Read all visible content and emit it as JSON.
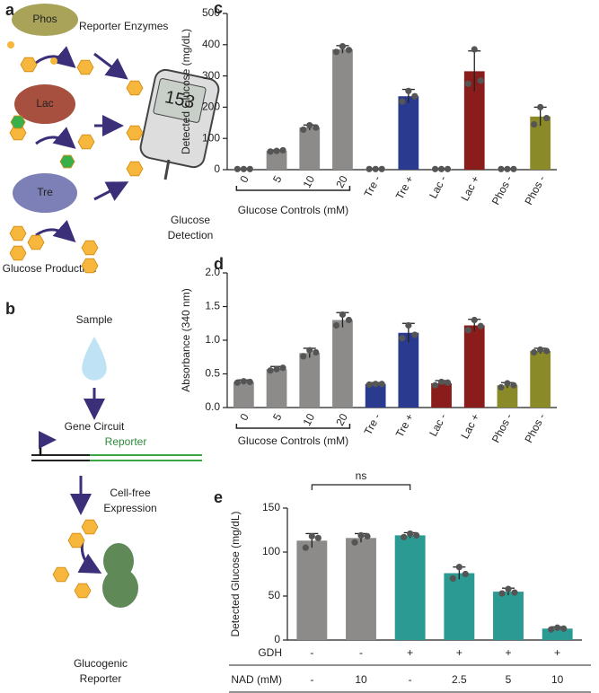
{
  "diagram": {
    "a": {
      "panel": "a",
      "phos": "Phos",
      "title": "Reporter Enzymes",
      "lac": "Lac",
      "tre": "Tre",
      "meter": "153",
      "detection": [
        "Glucose",
        "Detection"
      ],
      "production": "Glucose Production"
    },
    "b": {
      "panel": "b",
      "sample": "Sample",
      "circuit": "Gene Circuit",
      "reporter": "Reporter",
      "expression": [
        "Cell-free",
        "Expression"
      ],
      "product": [
        "Glucogenic",
        "Reporter"
      ]
    }
  },
  "chart_data": [
    {
      "type": "bar",
      "panel": "c",
      "y_label": "Detected Glucose (mg/dL)",
      "group_label": "Glucose Controls (mM)",
      "categories": [
        "0",
        "5",
        "10",
        "20",
        "Tre -",
        "Tre +",
        "Lac -",
        "Lac +",
        "Phos -",
        "Phos -"
      ],
      "values": [
        2,
        60,
        135,
        385,
        2,
        235,
        2,
        315,
        2,
        170
      ],
      "errors": [
        1,
        3,
        8,
        12,
        1,
        22,
        1,
        65,
        1,
        30
      ],
      "points": [
        [
          2,
          2,
          2
        ],
        [
          58,
          60,
          62
        ],
        [
          128,
          142,
          135
        ],
        [
          377,
          395,
          383
        ],
        [
          2,
          2,
          2
        ],
        [
          218,
          252,
          235
        ],
        [
          2,
          2,
          2
        ],
        [
          275,
          385,
          285
        ],
        [
          2,
          2,
          2
        ],
        [
          145,
          200,
          165
        ]
      ],
      "colors": [
        "#8d8b89",
        "#8d8b89",
        "#8d8b89",
        "#8d8b89",
        "#8d8b89",
        "#2a3a8f",
        "#8d8b89",
        "#8a1d1b",
        "#8d8b89",
        "#8a8a28"
      ],
      "ylim": [
        0,
        500
      ],
      "yticks": [
        0,
        100,
        200,
        300,
        400,
        500
      ]
    },
    {
      "type": "bar",
      "panel": "d",
      "y_label": "Absorbance (340 nm)",
      "group_label": "Glucose Controls (mM)",
      "categories": [
        "0",
        "5",
        "10",
        "20",
        "Tre -",
        "Tre +",
        "Lac -",
        "Lac +",
        "Phos -",
        "Phos -"
      ],
      "values": [
        0.38,
        0.57,
        0.81,
        1.3,
        0.35,
        1.11,
        0.36,
        1.22,
        0.33,
        0.84
      ],
      "errors": [
        0.03,
        0.04,
        0.07,
        0.11,
        0.02,
        0.14,
        0.04,
        0.09,
        0.04,
        0.04
      ],
      "points": [
        [
          0.37,
          0.39,
          0.38
        ],
        [
          0.55,
          0.57,
          0.59
        ],
        [
          0.76,
          0.85,
          0.82
        ],
        [
          1.22,
          1.38,
          1.3
        ],
        [
          0.34,
          0.35,
          0.35
        ],
        [
          1.03,
          1.22,
          1.08
        ],
        [
          0.33,
          0.38,
          0.37
        ],
        [
          1.15,
          1.3,
          1.21
        ],
        [
          0.3,
          0.36,
          0.33
        ],
        [
          0.82,
          0.86,
          0.84
        ]
      ],
      "colors": [
        "#8d8b89",
        "#8d8b89",
        "#8d8b89",
        "#8d8b89",
        "#2a3a8f",
        "#2a3a8f",
        "#8a1d1b",
        "#8a1d1b",
        "#8a8a28",
        "#8a8a28"
      ],
      "ylim": [
        0,
        2
      ],
      "yticks": [
        {
          "value": 0,
          "label": "0.0"
        },
        {
          "value": 0.5,
          "label": "0.5"
        },
        {
          "value": 1,
          "label": "1.0"
        },
        {
          "value": 1.5,
          "label": "1.5"
        },
        {
          "value": 2,
          "label": "2.0"
        }
      ]
    },
    {
      "type": "bar",
      "panel": "e",
      "y_label": "Detected Glucose (mg/dL)",
      "annotation": "ns",
      "table_rows": [
        {
          "label": "GDH",
          "cells": [
            "-",
            "-",
            "+",
            "+",
            "+",
            "+"
          ]
        },
        {
          "label": "NAD (mM)",
          "cells": [
            "-",
            "10",
            "-",
            "2.5",
            "5",
            "10"
          ]
        }
      ],
      "values": [
        113,
        116,
        119,
        76,
        55,
        13
      ],
      "errors": [
        8,
        5,
        3,
        7,
        4,
        2
      ],
      "points": [
        [
          105,
          118,
          116
        ],
        [
          111,
          119,
          118
        ],
        [
          117,
          121,
          119
        ],
        [
          70,
          83,
          75
        ],
        [
          53,
          58,
          54
        ],
        [
          12,
          14,
          13
        ]
      ],
      "colors": [
        "#8d8b89",
        "#8d8b89",
        "#2b9a93",
        "#2b9a93",
        "#2b9a93",
        "#2b9a93"
      ],
      "ylim": [
        0,
        150
      ],
      "yticks": [
        0,
        50,
        100,
        150
      ]
    }
  ]
}
